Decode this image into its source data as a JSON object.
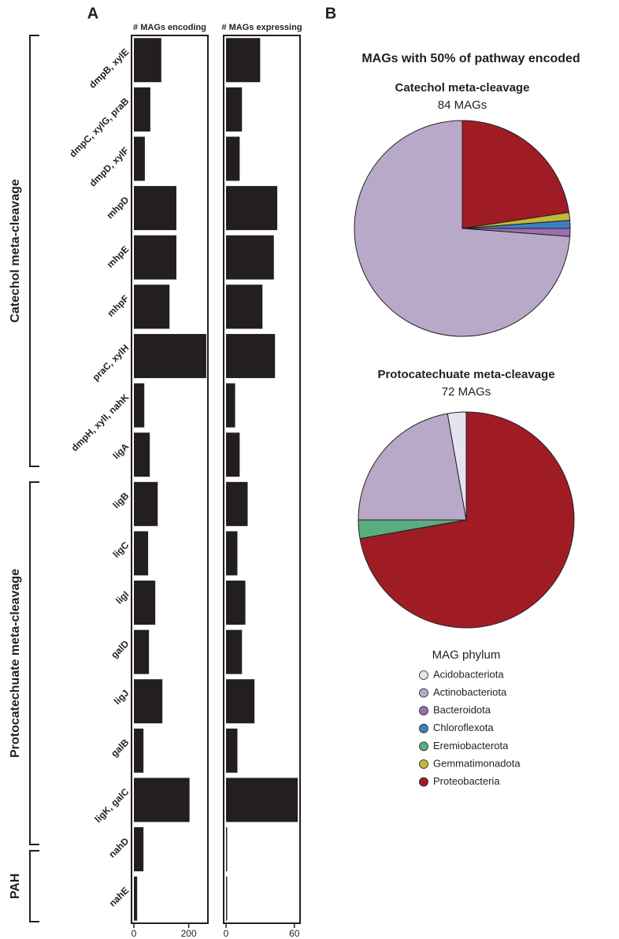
{
  "panel_labels": [
    "A",
    "B"
  ],
  "groups": [
    "Catechol meta-cleavage",
    "Protocatechuate meta-cleavage",
    "PAH"
  ],
  "pie_heading": "MAGs with 50% of pathway encoded",
  "legend": {
    "title": "MAG phylum",
    "categories": [
      "Acidobacteriota",
      "Actinobacteriota",
      "Bacteroidota",
      "Chloroflexota",
      "Eremiobacterota",
      "Gemmatimonadota",
      "Proteobacteria"
    ],
    "colors": [
      "#e3e4f0",
      "#b9a9c9",
      "#9c6fae",
      "#3f7fc1",
      "#5aad7f",
      "#bfb83c",
      "#a01c25"
    ]
  },
  "chart_data": [
    {
      "type": "bar",
      "orientation": "horizontal",
      "xlabel": "# MAGs encoding",
      "color": "#231f20",
      "categories": [
        "dmpB, xylE",
        "dmpC, xylG, praB",
        "dmpD, xylF",
        "mhpD",
        "mhpE",
        "mhpF",
        "praC, xylH",
        "dmpH, xylI, nahK",
        "ligA",
        "ligB",
        "ligC",
        "ligI",
        "galD",
        "ligJ",
        "galB",
        "ligK, galC",
        "nahD",
        "nahE"
      ],
      "values": [
        100,
        60,
        40,
        155,
        155,
        130,
        264,
        38,
        58,
        87,
        52,
        78,
        55,
        104,
        35,
        203,
        35,
        12
      ],
      "xlim": [
        0,
        270
      ],
      "xticks": [
        0,
        200
      ]
    },
    {
      "type": "bar",
      "orientation": "horizontal",
      "xlabel": "# MAGs expressing",
      "color": "#231f20",
      "values": [
        30,
        14,
        12,
        45,
        42,
        32,
        43,
        8,
        12,
        19,
        10,
        17,
        14,
        25,
        10,
        63,
        1,
        1
      ],
      "xlim": [
        0,
        65
      ],
      "xticks": [
        0,
        60
      ]
    },
    {
      "type": "pie",
      "title": "Catechol meta-cleavage",
      "subtitle": "84 MAGs",
      "values": [
        0,
        62,
        1,
        1,
        0,
        1,
        19
      ]
    },
    {
      "type": "pie",
      "title": "Protocatechuate meta-cleavage",
      "subtitle": "72 MAGs",
      "values": [
        2,
        16,
        0,
        0,
        2,
        0,
        52
      ]
    }
  ]
}
